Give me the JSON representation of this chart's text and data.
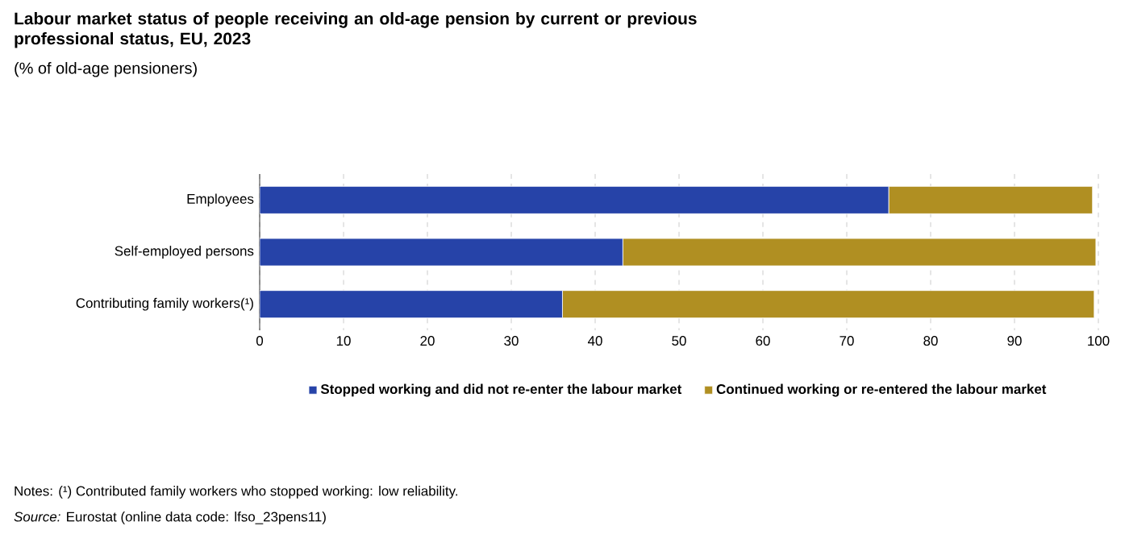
{
  "chart_data": {
    "type": "bar",
    "orientation": "horizontal",
    "stacked": true,
    "title": "Labour market status of people receiving an old-age pension by current or previous professional status, EU, 2023",
    "subtitle": "(% of old-age pensioners)",
    "categories": [
      "Employees",
      "Self-employed persons",
      "Contributing family workers(¹)"
    ],
    "series": [
      {
        "name": "Stopped working and did not re-enter the labour market",
        "color": "#2643a8",
        "values": [
          75.0,
          43.3,
          36.1
        ]
      },
      {
        "name": "Continued working or re-entered the labour market",
        "color": "#b08f22",
        "values": [
          24.3,
          56.4,
          63.4
        ]
      }
    ],
    "xlim": [
      0,
      100
    ],
    "xticks": [
      0,
      10,
      20,
      30,
      40,
      50,
      60,
      70,
      80,
      90,
      100
    ],
    "grid": "x",
    "legend": "bottom",
    "annotations": [
      "Notes: (¹) Contributed family workers who stopped working: low reliability.",
      "*Source:* Eurostat (online data code: lfso_23pens11)"
    ]
  }
}
